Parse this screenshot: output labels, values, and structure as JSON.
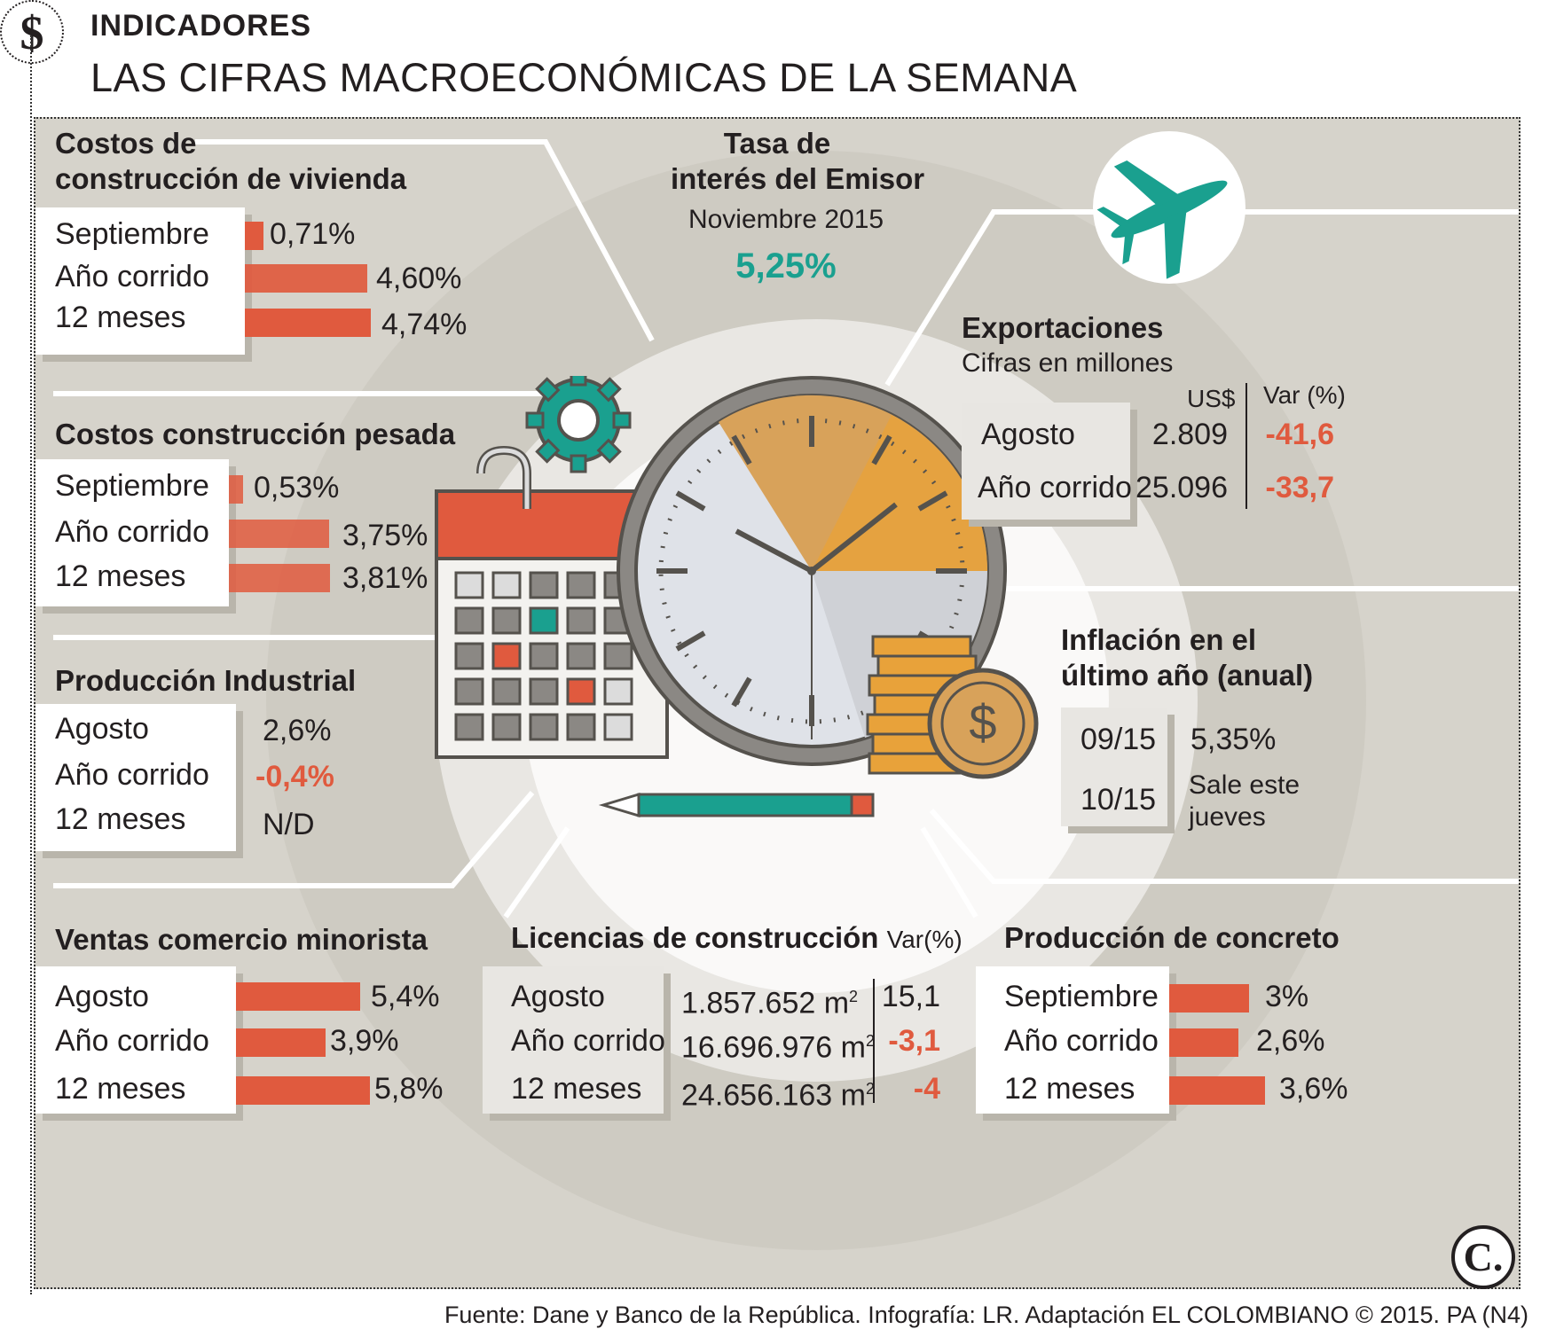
{
  "header": {
    "badge_symbol": "$",
    "kicker": "INDICADORES",
    "title": "LAS CIFRAS MACROECONÓMICAS DE LA SEMANA"
  },
  "colors": {
    "accent_red": "#e05a3e",
    "accent_teal": "#1aa08f",
    "accent_orange": "#e8a23a",
    "background": "#d6d3cb"
  },
  "vivienda": {
    "title_line1": "Costos de",
    "title_line2": "construcción de vivienda",
    "rows": [
      {
        "label": "Septiembre",
        "value": "0,71%",
        "percent": 0.71
      },
      {
        "label": "Año corrido",
        "value": "4,60%",
        "percent": 4.6
      },
      {
        "label": "12 meses",
        "value": "4,74%",
        "percent": 4.74
      }
    ]
  },
  "pesada": {
    "title": "Costos construcción pesada",
    "rows": [
      {
        "label": "Septiembre",
        "value": "0,53%",
        "percent": 0.53
      },
      {
        "label": "Año corrido",
        "value": "3,75%",
        "percent": 3.75
      },
      {
        "label": "12 meses",
        "value": "3,81%",
        "percent": 3.81
      }
    ]
  },
  "industrial": {
    "title": "Producción Industrial",
    "rows": [
      {
        "label": "Agosto",
        "value": "2,6%"
      },
      {
        "label": "Año corrido",
        "value": "-0,4%"
      },
      {
        "label": "12 meses",
        "value": "N/D"
      }
    ]
  },
  "minorista": {
    "title": "Ventas comercio minorista",
    "rows": [
      {
        "label": "Agosto",
        "value": "5,4%",
        "percent": 5.4
      },
      {
        "label": "Año corrido",
        "value": "3,9%",
        "percent": 3.9
      },
      {
        "label": "12 meses",
        "value": "5,8%",
        "percent": 5.8
      }
    ]
  },
  "emisor": {
    "title_line1": "Tasa de",
    "title_line2": "interés del Emisor",
    "subtitle": "Noviembre 2015",
    "value": "5,25%"
  },
  "exportaciones": {
    "title": "Exportaciones",
    "subtitle": "Cifras en millones",
    "col_usd": "US$",
    "col_var": "Var (%)",
    "rows": [
      {
        "label": "Agosto",
        "usd": "2.809",
        "var": "-41,6"
      },
      {
        "label": "Año corrido",
        "usd": "25.096",
        "var": "-33,7"
      }
    ]
  },
  "inflacion": {
    "title_line1": "Inflación en el",
    "title_line2": "último año (anual)",
    "rows": [
      {
        "label": "09/15",
        "value": "5,35%"
      },
      {
        "label": "10/15",
        "value_line1": "Sale este",
        "value_line2": "jueves"
      }
    ]
  },
  "licencias": {
    "title": "Licencias de construcción",
    "title_suffix": "Var(%)",
    "rows": [
      {
        "label": "Agosto",
        "area": "1.857.652 m",
        "var": "15,1"
      },
      {
        "label": "Año corrido",
        "area": "16.696.976 m",
        "var": "-3,1"
      },
      {
        "label": "12 meses",
        "area": "24.656.163 m",
        "var": "-4"
      }
    ],
    "unit_sup": "2"
  },
  "concreto": {
    "title": "Producción de concreto",
    "rows": [
      {
        "label": "Septiembre",
        "value": "3%",
        "percent": 3
      },
      {
        "label": "Año corrido",
        "value": "2,6%",
        "percent": 2.6
      },
      {
        "label": "12 meses",
        "value": "3,6%",
        "percent": 3.6
      }
    ]
  },
  "footer": {
    "source": "Fuente: Dane y Banco de la República. Infografía: LR. Adaptación EL COLOMBIANO © 2015. PA (N4)",
    "logo": "C."
  },
  "icons": [
    "dollar-icon",
    "airplane-icon",
    "gear-icon",
    "calendar-icon",
    "clock-icon",
    "coins-icon",
    "pencil-icon"
  ]
}
